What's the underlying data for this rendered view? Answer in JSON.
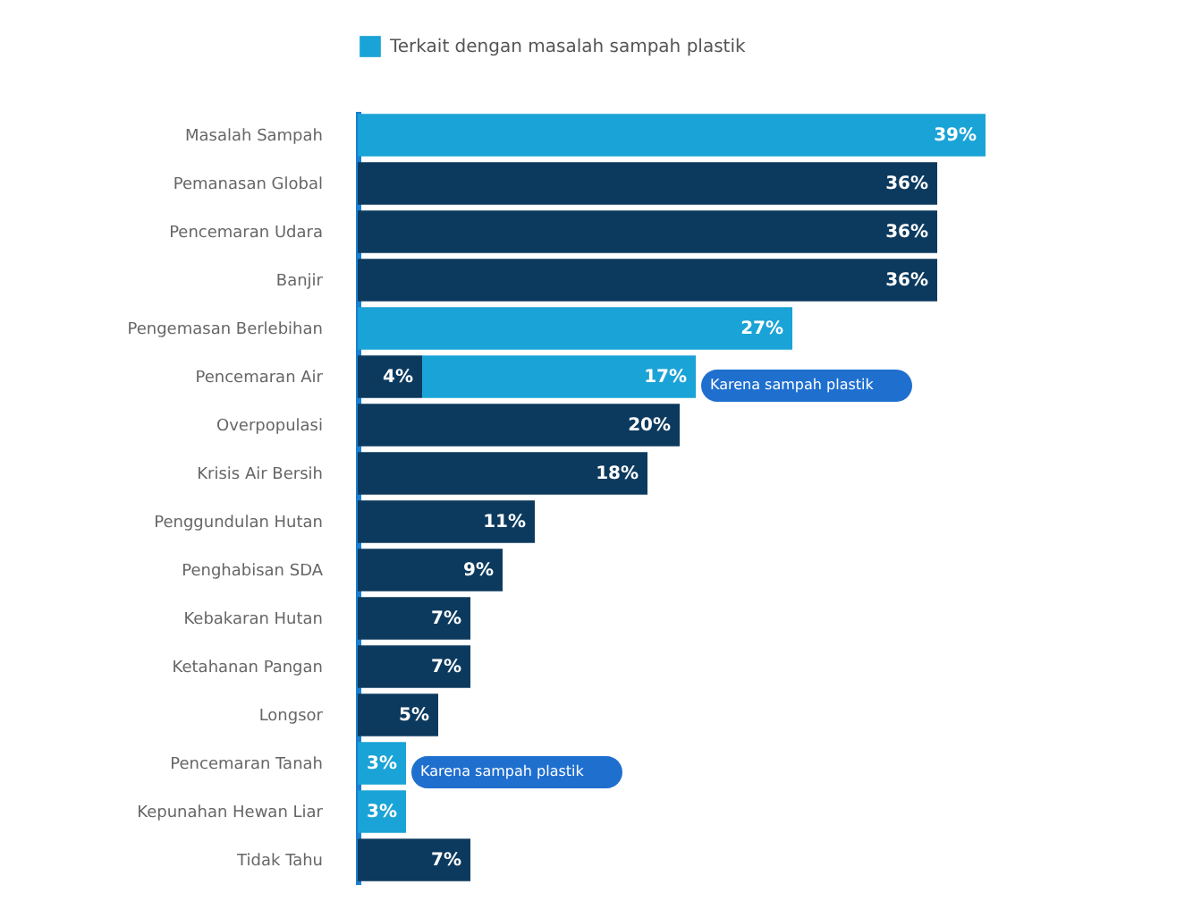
{
  "chart_data": {
    "type": "bar",
    "orientation": "horizontal",
    "stacked": true,
    "legend": "top",
    "categories": [
      "Masalah Sampah",
      "Pemanasan Global",
      "Pencemaran Udara",
      "Banjir",
      "Pengemasan Berlebihan",
      "Pencemaran Air",
      "Overpopulasi",
      "Krisis Air Bersih",
      "Penggundulan Hutan",
      "Penghabisan SDA",
      "Kebakaran Hutan",
      "Ketahanan Pangan",
      "Longsor",
      "Pencemaran Tanah",
      "Kepunahan Hewan Liar",
      "Tidak Tahu"
    ],
    "series": [
      {
        "color": "#0c3a5e",
        "values": [
          null,
          36,
          36,
          36,
          null,
          4,
          20,
          18,
          11,
          9,
          7,
          7,
          5,
          null,
          null,
          7
        ],
        "value_labels": [
          null,
          "36%",
          "36%",
          "36%",
          null,
          "4%",
          "20%",
          "18%",
          "11%",
          "9%",
          "7%",
          "7%",
          "5%",
          null,
          null,
          "7%"
        ]
      },
      {
        "name": "Terkait dengan masalah sampah plastik",
        "color": "#1aa3d6",
        "values": [
          39,
          null,
          null,
          null,
          27,
          17,
          null,
          null,
          null,
          null,
          null,
          null,
          null,
          3,
          3,
          null
        ],
        "value_labels": [
          "39%",
          null,
          null,
          null,
          "27%",
          "17%",
          null,
          null,
          null,
          null,
          null,
          null,
          null,
          "3%",
          "3%",
          null
        ]
      }
    ],
    "annotations": [
      {
        "text": "Karena sampah plastik",
        "x": 21,
        "y": "Pencemaran Air"
      },
      {
        "text": "Karena sampah plastik",
        "x": 3,
        "y": "Pencemaran Tanah"
      }
    ]
  }
}
